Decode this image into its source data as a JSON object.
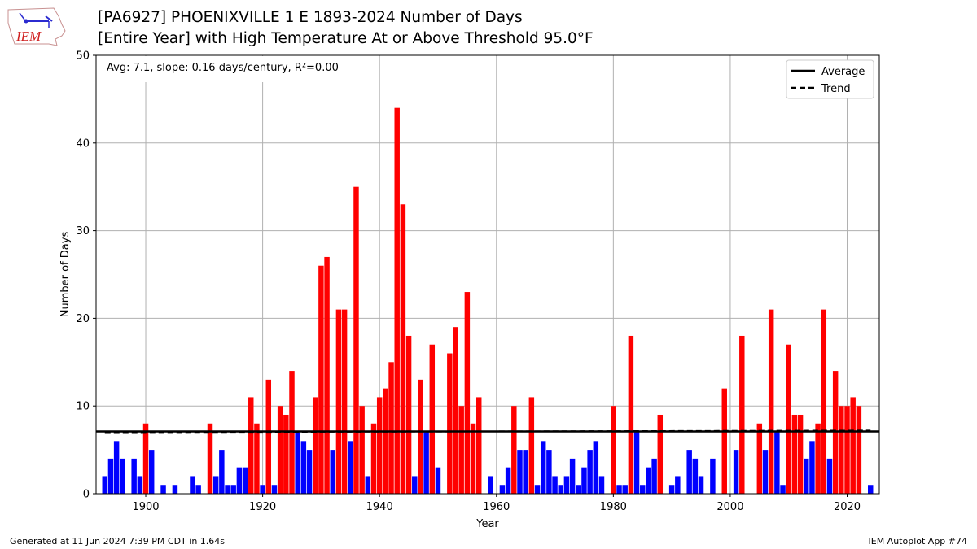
{
  "header": {
    "title_line1": "[PA6927] PHOENIXVILLE 1 E 1893-2024 Number of Days",
    "title_line2": "[Entire Year] with High Temperature At or Above Threshold 95.0°F",
    "logo_text": "IEM"
  },
  "footer": {
    "generated": "Generated at 11 Jun 2024 7:39 PM CDT in 1.64s",
    "app": "IEM Autoplot App #74"
  },
  "chart_data": {
    "type": "bar",
    "stats_text": "Avg: 7.1, slope: 0.16 days/century, R²=0.00",
    "xlabel": "Year",
    "ylabel": "Number of Days",
    "xlim": [
      1891.5,
      1925.5
    ],
    "ylim": [
      0,
      50
    ],
    "xticks": [
      1900,
      1920,
      1940,
      1960,
      1980,
      2000,
      2020
    ],
    "yticks": [
      0,
      10,
      20,
      30,
      40,
      50
    ],
    "grid": true,
    "legend_position": "top-right",
    "legend": [
      {
        "label": "Average",
        "style": "solid"
      },
      {
        "label": "Trend",
        "style": "dashed"
      }
    ],
    "average": 7.1,
    "trend_start": 7.0,
    "trend_end": 7.2,
    "colors": {
      "above_average": "#ff0000",
      "below_average": "#0000ff",
      "average_line": "#000000"
    },
    "first_year": 1893,
    "values": [
      2,
      4,
      6,
      4,
      0,
      4,
      2,
      8,
      5,
      0,
      1,
      0,
      1,
      0,
      0,
      2,
      1,
      0,
      8,
      2,
      5,
      1,
      1,
      3,
      3,
      11,
      8,
      1,
      13,
      1,
      10,
      9,
      14,
      7,
      6,
      5,
      11,
      26,
      27,
      5,
      21,
      21,
      6,
      35,
      10,
      2,
      8,
      11,
      12,
      15,
      44,
      33,
      18,
      2,
      13,
      7,
      17,
      3,
      0,
      16,
      19,
      10,
      23,
      8,
      11,
      0,
      2,
      0,
      1,
      3,
      10,
      5,
      5,
      11,
      1,
      6,
      5,
      2,
      1,
      2,
      4,
      1,
      3,
      5,
      6,
      2,
      0,
      10,
      1,
      1,
      18,
      7,
      1,
      3,
      4,
      9,
      0,
      1,
      2,
      0,
      5,
      4,
      2,
      0,
      4,
      0,
      12,
      0,
      5,
      18,
      0,
      0,
      8,
      5,
      21,
      7,
      1,
      17,
      9,
      9,
      4,
      6,
      8,
      21,
      4,
      14,
      10,
      10,
      11,
      10,
      0,
      1
    ]
  }
}
